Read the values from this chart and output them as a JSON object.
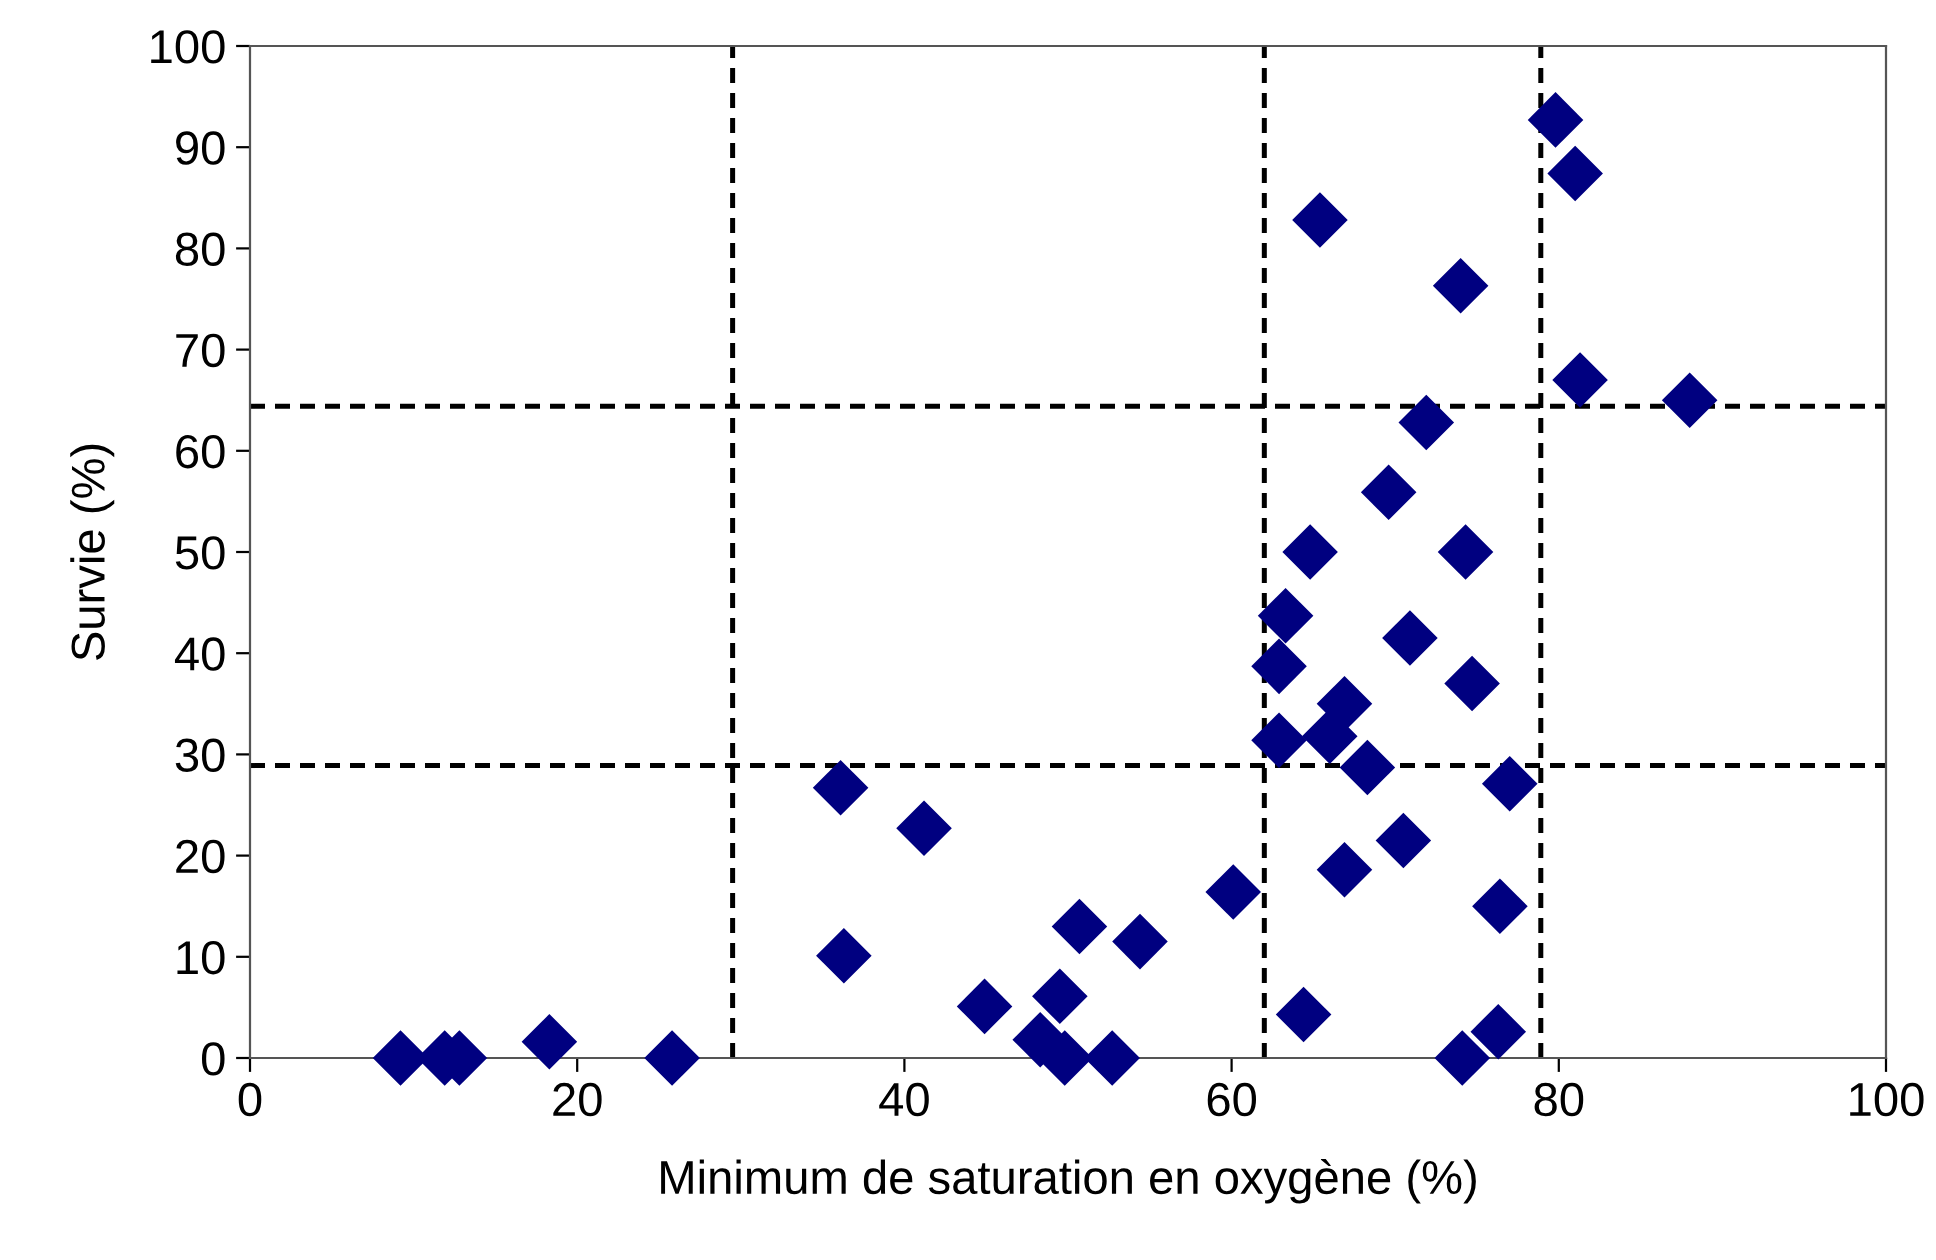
{
  "chart_data": {
    "type": "scatter",
    "xlabel": "Minimum de saturation en oxygène (%)",
    "ylabel": "Survie (%)",
    "x": [
      9.2,
      11.9,
      12.8,
      18.3,
      25.8,
      36.1,
      36.3,
      41.2,
      44.9,
      48.3,
      49.5,
      49.8,
      52.7,
      50.7,
      54.4,
      60.1,
      64.4,
      63.3,
      62.9,
      62.9,
      64.8,
      65.4,
      66,
      66.9,
      68.3,
      66.9,
      69.6,
      70.9,
      70.5,
      74,
      71.9,
      74.1,
      74.3,
      74.7,
      76.4,
      76.3,
      77,
      79.8,
      81,
      81.3,
      88
    ],
    "series": [
      {
        "color": "#000080",
        "values": [
          0,
          0,
          0,
          1.6,
          0,
          26.7,
          10.1,
          22.7,
          5.1,
          1.8,
          6.1,
          0,
          0,
          13,
          11.5,
          16.4,
          4.3,
          43.7,
          38.7,
          31.4,
          50,
          82.8,
          31.8,
          35,
          28.7,
          18.6,
          55.9,
          41.5,
          21.5,
          76.3,
          62.8,
          0,
          50,
          37,
          15,
          2.6,
          27.1,
          92.7,
          87.4,
          67,
          65
        ]
      }
    ],
    "marker": "diamond",
    "xlim": [
      0,
      100
    ],
    "ylim": [
      0,
      100
    ],
    "xticks": [
      0,
      20,
      40,
      60,
      80,
      100
    ],
    "yticks": [
      0,
      10,
      20,
      30,
      40,
      50,
      60,
      70,
      80,
      90,
      100
    ],
    "grid": false,
    "legend": false,
    "ref_lines": [
      {
        "axis": "x",
        "value": 29.5,
        "line_style": "dashed",
        "color": "#000000"
      },
      {
        "axis": "x",
        "value": 62.0,
        "line_style": "dashed",
        "color": "#000000"
      },
      {
        "axis": "x",
        "value": 78.9,
        "line_style": "dashed",
        "color": "#000000"
      },
      {
        "axis": "y",
        "value": 28.9,
        "line_style": "dashed",
        "color": "#000000"
      },
      {
        "axis": "y",
        "value": 64.4,
        "line_style": "dashed",
        "color": "#000000"
      }
    ]
  }
}
